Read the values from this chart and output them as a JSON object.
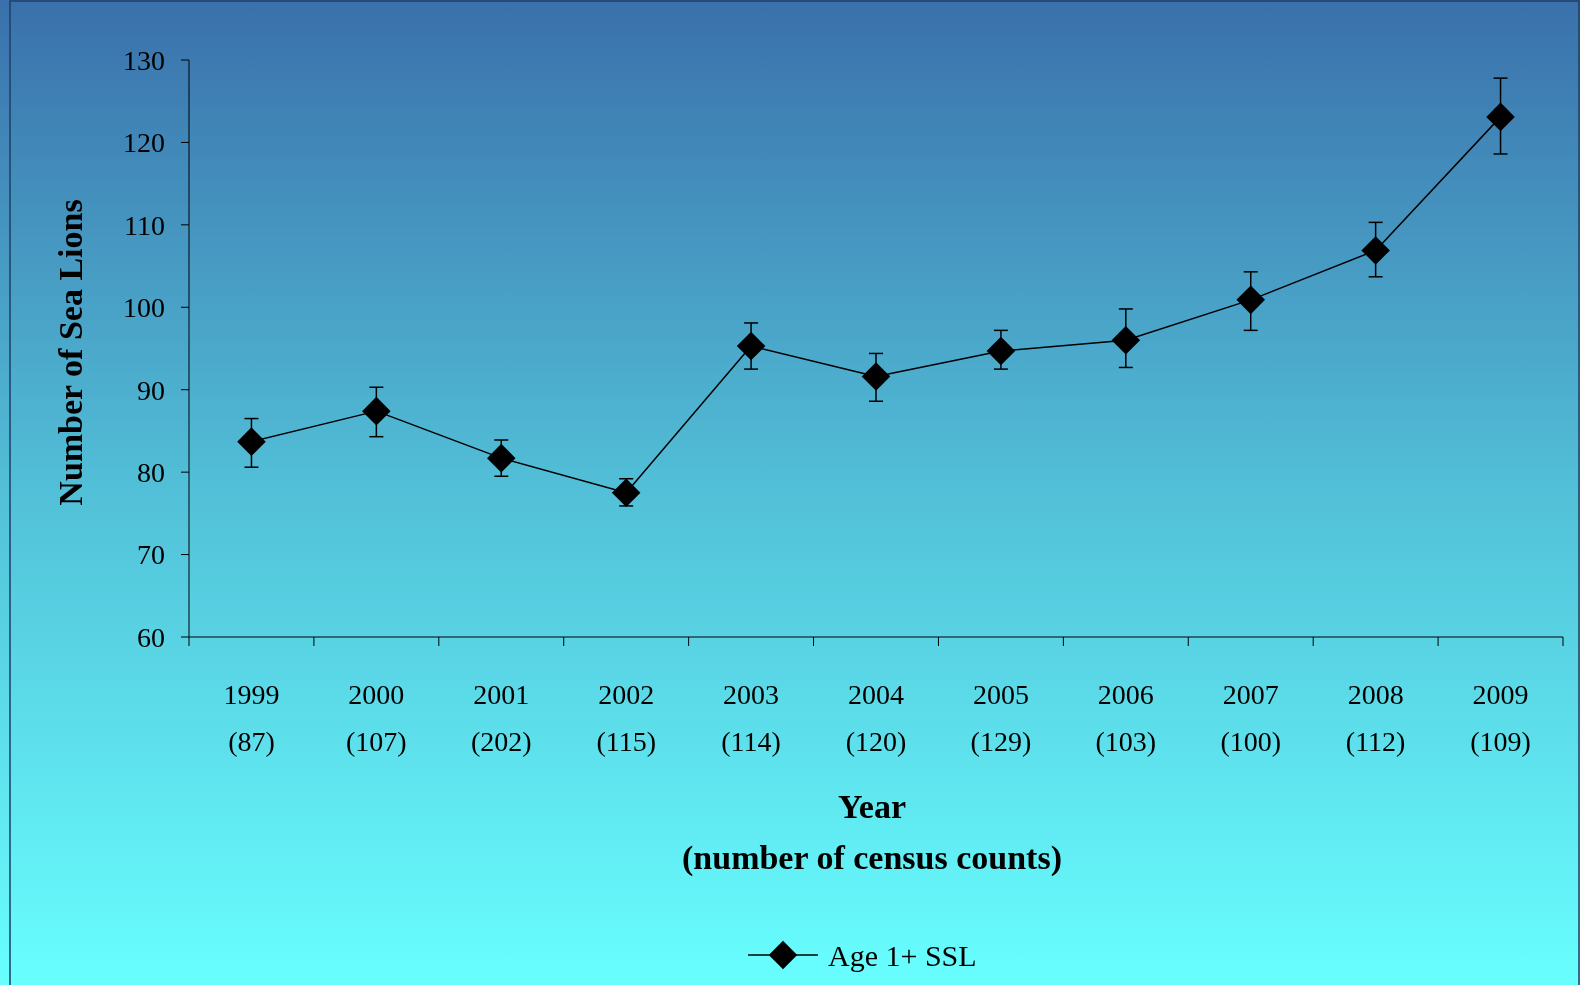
{
  "chart_data": {
    "type": "line",
    "xlabel": "Year\n(number of census counts)",
    "ylabel": "Number of Sea Lions",
    "categories": [
      "1999\n(87)",
      "2000\n(107)",
      "2001\n(202)",
      "2002\n(115)",
      "2003\n(114)",
      "2004\n(120)",
      "2005\n(129)",
      "2006\n(103)",
      "2007\n(100)",
      "2008\n(112)",
      "2009\n(109)"
    ],
    "series": [
      {
        "name": "Age 1+ SSL",
        "color": "#000000",
        "values": [
          83.7,
          87.4,
          81.7,
          77.5,
          95.3,
          91.6,
          94.7,
          96.0,
          100.9,
          106.9,
          123.1
        ],
        "errors": [
          [
            80.6,
            86.5
          ],
          [
            84.3,
            90.3
          ],
          [
            79.5,
            83.9
          ],
          [
            75.9,
            79.2
          ],
          [
            92.5,
            98.1
          ],
          [
            88.6,
            94.4
          ],
          [
            92.5,
            97.2
          ],
          [
            92.7,
            99.8
          ],
          [
            97.2,
            104.3
          ],
          [
            103.7,
            110.3
          ],
          [
            118.6,
            127.8
          ]
        ]
      }
    ],
    "ylim": [
      60,
      130
    ],
    "yticks": [
      60,
      70,
      80,
      90,
      100,
      110,
      120,
      130
    ],
    "marker": "diamond",
    "line_style": "solid",
    "legend": "bottom",
    "grid": false
  }
}
